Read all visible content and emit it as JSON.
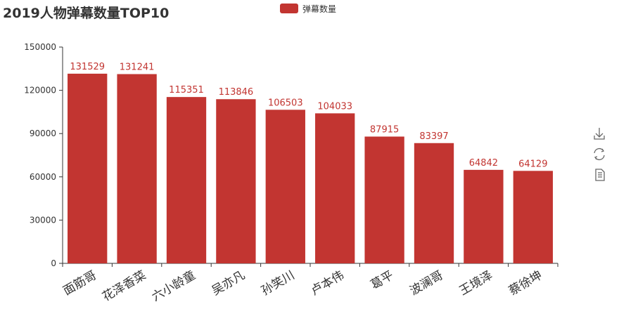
{
  "chart_data": {
    "type": "bar",
    "title": "2019人物弹幕数量TOP10",
    "categories": [
      "面筋哥",
      "花泽香菜",
      "六小龄童",
      "吴亦凡",
      "孙笑川",
      "卢本伟",
      "葛平",
      "波澜哥",
      "王境泽",
      "蔡徐坤"
    ],
    "series": [
      {
        "name": "弹幕数量",
        "values": [
          131529,
          131241,
          115351,
          113846,
          106503,
          104033,
          87915,
          83397,
          64842,
          64129
        ]
      }
    ],
    "yticks": [
      "0",
      "30000",
      "60000",
      "90000",
      "120000",
      "150000"
    ],
    "ylim": [
      0,
      150000
    ],
    "xlabel": "",
    "ylabel": "",
    "legend_position": "top-center",
    "show_data_labels": true,
    "grid": false,
    "colors": {
      "bar": "#c23531",
      "label": "#c23531",
      "axis": "#333333",
      "icon": "#666666"
    }
  },
  "toolbox": {
    "icons": [
      "download-icon",
      "refresh-icon",
      "data-view-icon"
    ]
  }
}
